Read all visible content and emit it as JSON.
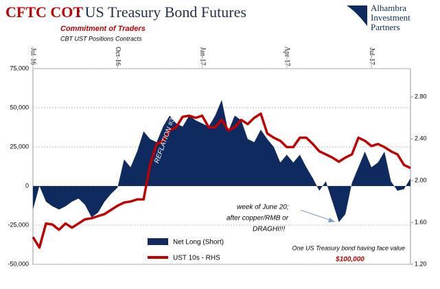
{
  "chart_data": {
    "type": "combo",
    "title_red": "CFTC COT",
    "title_rest": ": US Treasury Bond Futures",
    "subtitle": "Commitment of Traders",
    "subtitle2": "CBT UST Positions Contracts",
    "logo": [
      "Alhambra",
      "Investment",
      "Partners"
    ],
    "annotations": [
      "REFLATION #3",
      "week of June 20;",
      "after copper/RMB or",
      "DRAGHI!!!",
      "One US Treasury bond having face value",
      "$100,000"
    ],
    "categories": [
      "Jul-16",
      null,
      null,
      null,
      null,
      null,
      null,
      null,
      null,
      null,
      null,
      null,
      null,
      "Oct-16",
      null,
      null,
      null,
      null,
      null,
      null,
      null,
      null,
      null,
      null,
      null,
      null,
      "Jan-17",
      null,
      null,
      null,
      null,
      null,
      null,
      null,
      null,
      null,
      null,
      null,
      null,
      "Apr-17",
      null,
      null,
      null,
      null,
      null,
      null,
      null,
      null,
      null,
      null,
      null,
      null,
      "Jul-17",
      null,
      null,
      null,
      null,
      null,
      null
    ],
    "series": [
      {
        "name": "Net Long (Short)",
        "type": "area",
        "color": "#0f2a5f",
        "values": [
          -15000,
          0,
          -10000,
          -13000,
          -15000,
          -13000,
          -10000,
          -8000,
          -12000,
          -20000,
          -17000,
          -10000,
          -5000,
          -1000,
          17000,
          12000,
          22000,
          35000,
          30000,
          28000,
          38000,
          45000,
          40000,
          38000,
          45000,
          42000,
          40000,
          38000,
          45000,
          55000,
          35000,
          45000,
          42000,
          30000,
          28000,
          36000,
          30000,
          25000,
          15000,
          20000,
          15000,
          20000,
          12000,
          5000,
          -3000,
          3000,
          -10000,
          -23000,
          -18000,
          2000,
          12000,
          22000,
          12000,
          15000,
          22000,
          3000,
          -3000,
          -2000,
          5000
        ]
      },
      {
        "name": "UST 10s - RHS",
        "type": "line",
        "axis": "y2",
        "color": "#c00000",
        "values": [
          1.46,
          1.36,
          1.59,
          1.58,
          1.53,
          1.59,
          1.55,
          1.59,
          1.63,
          1.64,
          1.66,
          1.68,
          1.72,
          1.76,
          1.79,
          1.8,
          1.82,
          1.82,
          2.15,
          2.35,
          2.38,
          2.48,
          2.51,
          2.61,
          2.62,
          2.6,
          2.62,
          2.51,
          2.51,
          2.58,
          2.48,
          2.51,
          2.58,
          2.54,
          2.6,
          2.64,
          2.45,
          2.41,
          2.38,
          2.32,
          2.32,
          2.41,
          2.41,
          2.35,
          2.28,
          2.25,
          2.22,
          2.18,
          2.22,
          2.25,
          2.41,
          2.38,
          2.33,
          2.35,
          2.32,
          2.28,
          2.25,
          2.15,
          2.12
        ]
      }
    ],
    "ylim": [
      -50000,
      75000
    ],
    "yticks": [
      {
        "value": -50000,
        "label": "-50,000"
      },
      {
        "value": -25000,
        "label": "-25,000"
      },
      0,
      {
        "value": 25000,
        "label": "25,000"
      },
      {
        "value": 50000,
        "label": "50,000"
      },
      {
        "value": 75000,
        "label": "75,000"
      }
    ],
    "y2lim": [
      1.2,
      3.07
    ],
    "y2ticks": [
      {
        "value": 1.2,
        "label": "1.20"
      },
      {
        "value": 1.6,
        "label": "1.60"
      },
      {
        "value": 2.0,
        "label": "2.00"
      },
      {
        "value": 2.4,
        "label": "2.40"
      },
      {
        "value": 2.8,
        "label": "2.80"
      }
    ],
    "grid": true
  }
}
